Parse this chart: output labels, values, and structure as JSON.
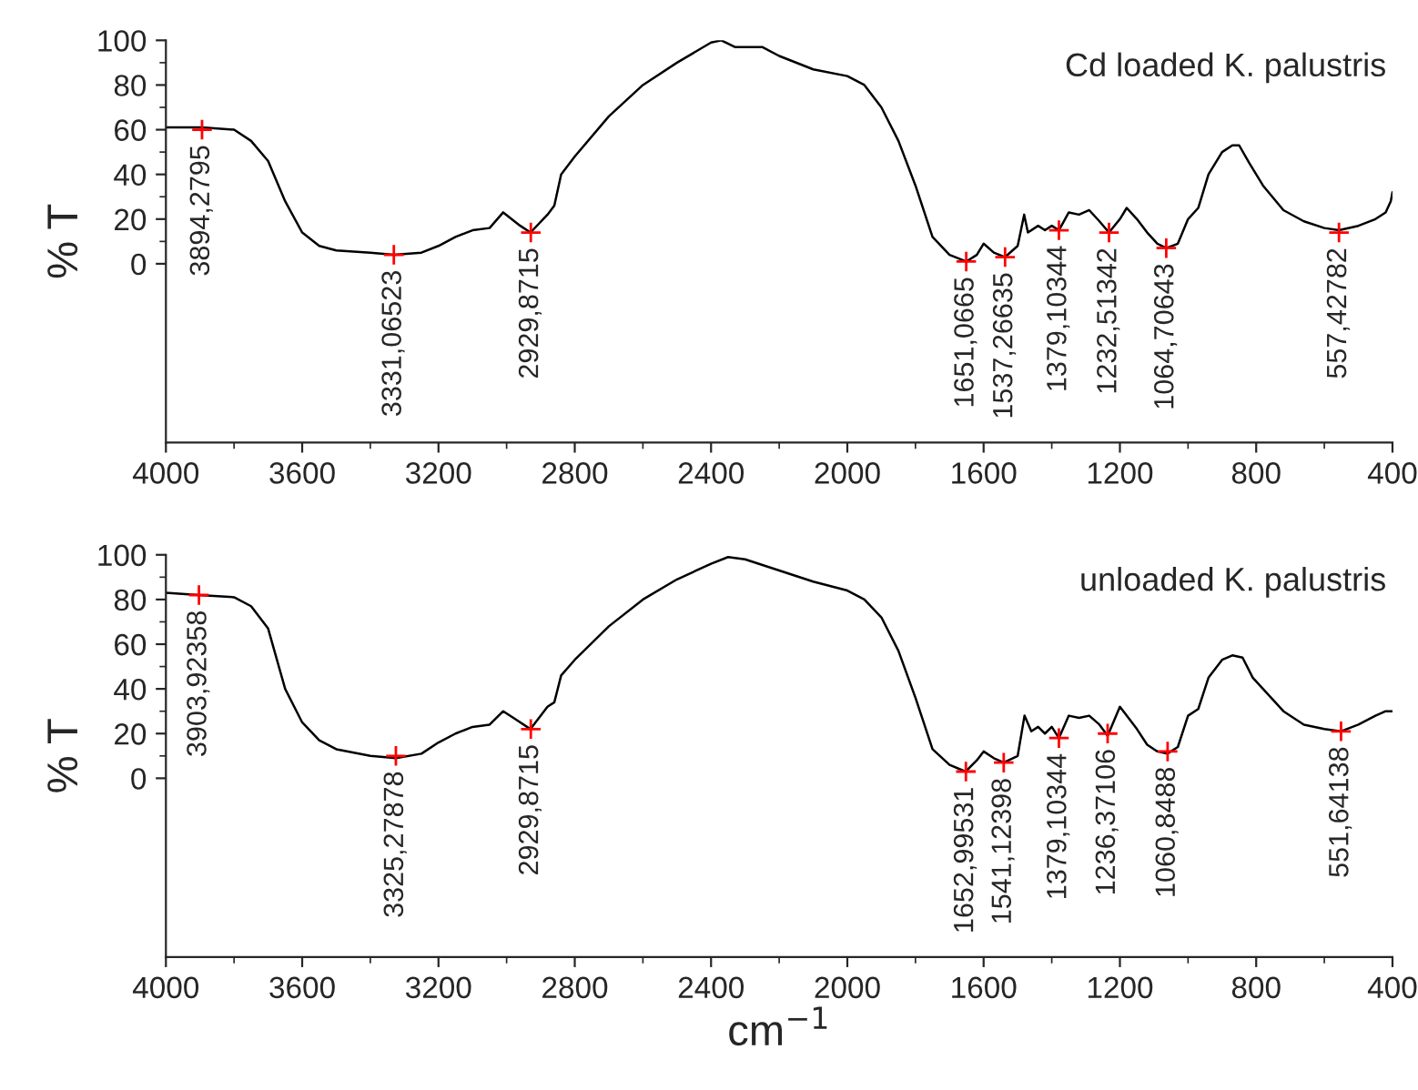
{
  "chart_data": [
    {
      "type": "line",
      "title": "Cd loaded K. palustris",
      "ylabel": "% T",
      "xlim": [
        4000,
        400
      ],
      "xticks": [
        4000,
        3600,
        3200,
        2800,
        2400,
        2000,
        1600,
        1200,
        800,
        400
      ],
      "ylim": [
        -80,
        100
      ],
      "yticks": [
        0,
        20,
        40,
        60,
        80,
        100
      ],
      "series": [
        {
          "color": "#000000",
          "marker": "none",
          "x": [
            4000,
            3894,
            3800,
            3750,
            3700,
            3650,
            3600,
            3550,
            3500,
            3400,
            3331,
            3250,
            3200,
            3150,
            3100,
            3050,
            3010,
            2960,
            2930,
            2880,
            2860,
            2840,
            2800,
            2700,
            2600,
            2500,
            2400,
            2370,
            2330,
            2250,
            2200,
            2100,
            2000,
            1950,
            1900,
            1850,
            1800,
            1750,
            1700,
            1651,
            1620,
            1600,
            1570,
            1537,
            1500,
            1481,
            1470,
            1440,
            1420,
            1400,
            1379,
            1350,
            1320,
            1290,
            1260,
            1232,
            1200,
            1180,
            1150,
            1120,
            1090,
            1064,
            1030,
            1000,
            970,
            940,
            900,
            870,
            850,
            820,
            780,
            720,
            660,
            600,
            557,
            500,
            450,
            420,
            405,
            400
          ],
          "values": [
            61,
            61,
            60,
            55,
            46,
            28,
            14,
            8,
            6,
            5,
            4,
            5,
            8,
            12,
            15,
            16,
            23,
            17,
            14,
            22,
            26,
            40,
            48,
            66,
            80,
            90,
            99,
            100,
            97,
            97,
            93,
            87,
            84,
            80,
            70,
            55,
            35,
            12,
            4,
            1,
            4,
            9,
            5,
            3,
            8,
            22,
            14,
            17,
            15,
            17,
            15,
            23,
            22,
            24,
            19,
            14,
            20,
            25,
            20,
            14,
            9,
            7,
            9,
            20,
            25,
            40,
            50,
            53,
            53,
            45,
            35,
            24,
            19,
            16,
            15,
            17,
            20,
            23,
            28,
            32
          ]
        },
        {
          "type": "scatter",
          "color": "#ff0000",
          "marker": "cross",
          "x": [
            3894,
            3331,
            2929,
            1651,
            1537,
            1379,
            1232,
            1064,
            557
          ],
          "values": [
            60,
            4,
            14,
            1,
            3,
            15,
            14,
            7,
            14
          ]
        }
      ],
      "annotations": [
        {
          "text": "3894,2795",
          "x": 3894,
          "y": 60
        },
        {
          "text": "3331,06523",
          "x": 3331,
          "y": 4
        },
        {
          "text": "2929,8715",
          "x": 2929,
          "y": 14
        },
        {
          "text": "1651,0665",
          "x": 1651,
          "y": 1
        },
        {
          "text": "1537,26635",
          "x": 1537,
          "y": 3
        },
        {
          "text": "1379,10344",
          "x": 1379,
          "y": 15
        },
        {
          "text": "1232,51342",
          "x": 1232,
          "y": 14
        },
        {
          "text": "1064,70643",
          "x": 1064,
          "y": 7
        },
        {
          "text": "557,42782",
          "x": 557,
          "y": 14
        }
      ]
    },
    {
      "type": "line",
      "title": "unloaded K. palustris",
      "ylabel": "% T",
      "xlabel": "cm$^{−1}$",
      "xlim": [
        4000,
        400
      ],
      "xticks": [
        4000,
        3600,
        3200,
        2800,
        2400,
        2000,
        1600,
        1200,
        800,
        400
      ],
      "ylim": [
        -80,
        100
      ],
      "yticks": [
        0,
        20,
        40,
        60,
        80,
        100
      ],
      "series": [
        {
          "color": "#000000",
          "marker": "none",
          "x": [
            4000,
            3904,
            3800,
            3750,
            3700,
            3650,
            3600,
            3550,
            3500,
            3400,
            3325,
            3250,
            3200,
            3150,
            3100,
            3050,
            3010,
            2980,
            2930,
            2880,
            2860,
            2840,
            2800,
            2700,
            2600,
            2500,
            2400,
            2350,
            2300,
            2200,
            2100,
            2000,
            1950,
            1900,
            1850,
            1800,
            1750,
            1700,
            1653,
            1620,
            1600,
            1570,
            1541,
            1500,
            1480,
            1460,
            1440,
            1420,
            1400,
            1379,
            1350,
            1320,
            1290,
            1260,
            1236,
            1200,
            1180,
            1150,
            1120,
            1090,
            1061,
            1030,
            1000,
            970,
            940,
            900,
            870,
            840,
            810,
            780,
            720,
            660,
            600,
            552,
            500,
            450,
            420,
            400
          ],
          "values": [
            83,
            82,
            81,
            77,
            67,
            40,
            25,
            17,
            13,
            10,
            9,
            11,
            16,
            20,
            23,
            24,
            30,
            27,
            22,
            32,
            34,
            46,
            53,
            68,
            80,
            89,
            96,
            99,
            98,
            93,
            88,
            84,
            80,
            72,
            57,
            36,
            13,
            6,
            3,
            8,
            12,
            9,
            7,
            10,
            28,
            21,
            23,
            20,
            23,
            18,
            28,
            27,
            28,
            24,
            19,
            32,
            28,
            22,
            15,
            12,
            11,
            14,
            28,
            31,
            45,
            53,
            55,
            54,
            45,
            40,
            30,
            24,
            22,
            21,
            24,
            28,
            30,
            30
          ]
        },
        {
          "type": "scatter",
          "color": "#ff0000",
          "marker": "cross",
          "x": [
            3903,
            3325,
            2929,
            1652,
            1541,
            1379,
            1236,
            1060,
            551
          ],
          "values": [
            82,
            10,
            22,
            3,
            7,
            18,
            20,
            12,
            21
          ]
        }
      ],
      "annotations": [
        {
          "text": "3903,92358",
          "x": 3903,
          "y": 82
        },
        {
          "text": "3325,27878",
          "x": 3325,
          "y": 10
        },
        {
          "text": "2929,8715",
          "x": 2929,
          "y": 22
        },
        {
          "text": "1652,99531",
          "x": 1652,
          "y": 3
        },
        {
          "text": "1541,12398",
          "x": 1541,
          "y": 7
        },
        {
          "text": "1379,10344",
          "x": 1379,
          "y": 18
        },
        {
          "text": "1236,37106",
          "x": 1236,
          "y": 20
        },
        {
          "text": "1060,8488",
          "x": 1060,
          "y": 12
        },
        {
          "text": "551,64138",
          "x": 551,
          "y": 21
        }
      ]
    }
  ]
}
